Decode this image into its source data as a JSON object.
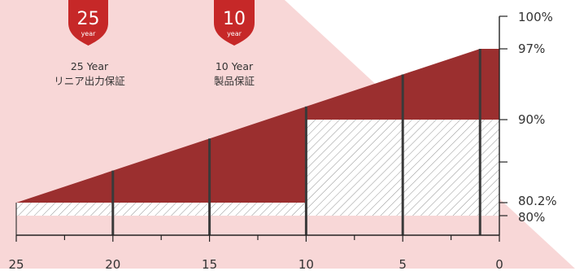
{
  "colors": {
    "background_pink": "#f8d7d7",
    "warranty_red": "#9b2f2f",
    "badge_red": "#c62828",
    "hatch_line": "#7a7a7a",
    "axis": "#222222"
  },
  "badges": [
    {
      "number": "25",
      "sub": "year",
      "caption_line1": "25 Year",
      "caption_line2": "リニア出力保証",
      "icon": "shield-icon"
    },
    {
      "number": "10",
      "sub": "year",
      "caption_line1": "10 Year",
      "caption_line2": "製品保証",
      "icon": "shield-icon"
    }
  ],
  "chart_data": {
    "type": "area",
    "x_axis": {
      "range": [
        25,
        0
      ],
      "reversed": true,
      "tick_labels": [
        "25",
        "20",
        "15",
        "10",
        "5",
        "0"
      ],
      "label_values": [
        25,
        20,
        15,
        10,
        5,
        0
      ],
      "minor_tick_values": [
        25,
        22.5,
        20,
        17.5,
        15,
        12.5,
        10,
        7.5,
        5,
        2.5,
        0
      ]
    },
    "y_axis": {
      "range": [
        78,
        100
      ],
      "position": "right",
      "tick_labels": [
        "100%",
        "97%",
        "90%",
        "80.2%",
        "80%"
      ],
      "tick_values": [
        100,
        97,
        90,
        80.2,
        80
      ]
    },
    "series": [
      {
        "name": "",
        "kind": "linear-output-warranty",
        "x": [
          25,
          1
        ],
        "y": [
          80.2,
          97
        ]
      },
      {
        "name": "",
        "kind": "step-warranty",
        "steps": [
          {
            "from": 25,
            "to": 10,
            "y": 80
          },
          {
            "from": 10,
            "to": 0,
            "y": 90
          }
        ]
      }
    ],
    "year_markers": [
      25,
      20,
      15,
      10,
      5,
      1
    ],
    "grid": false,
    "legend": "none"
  }
}
